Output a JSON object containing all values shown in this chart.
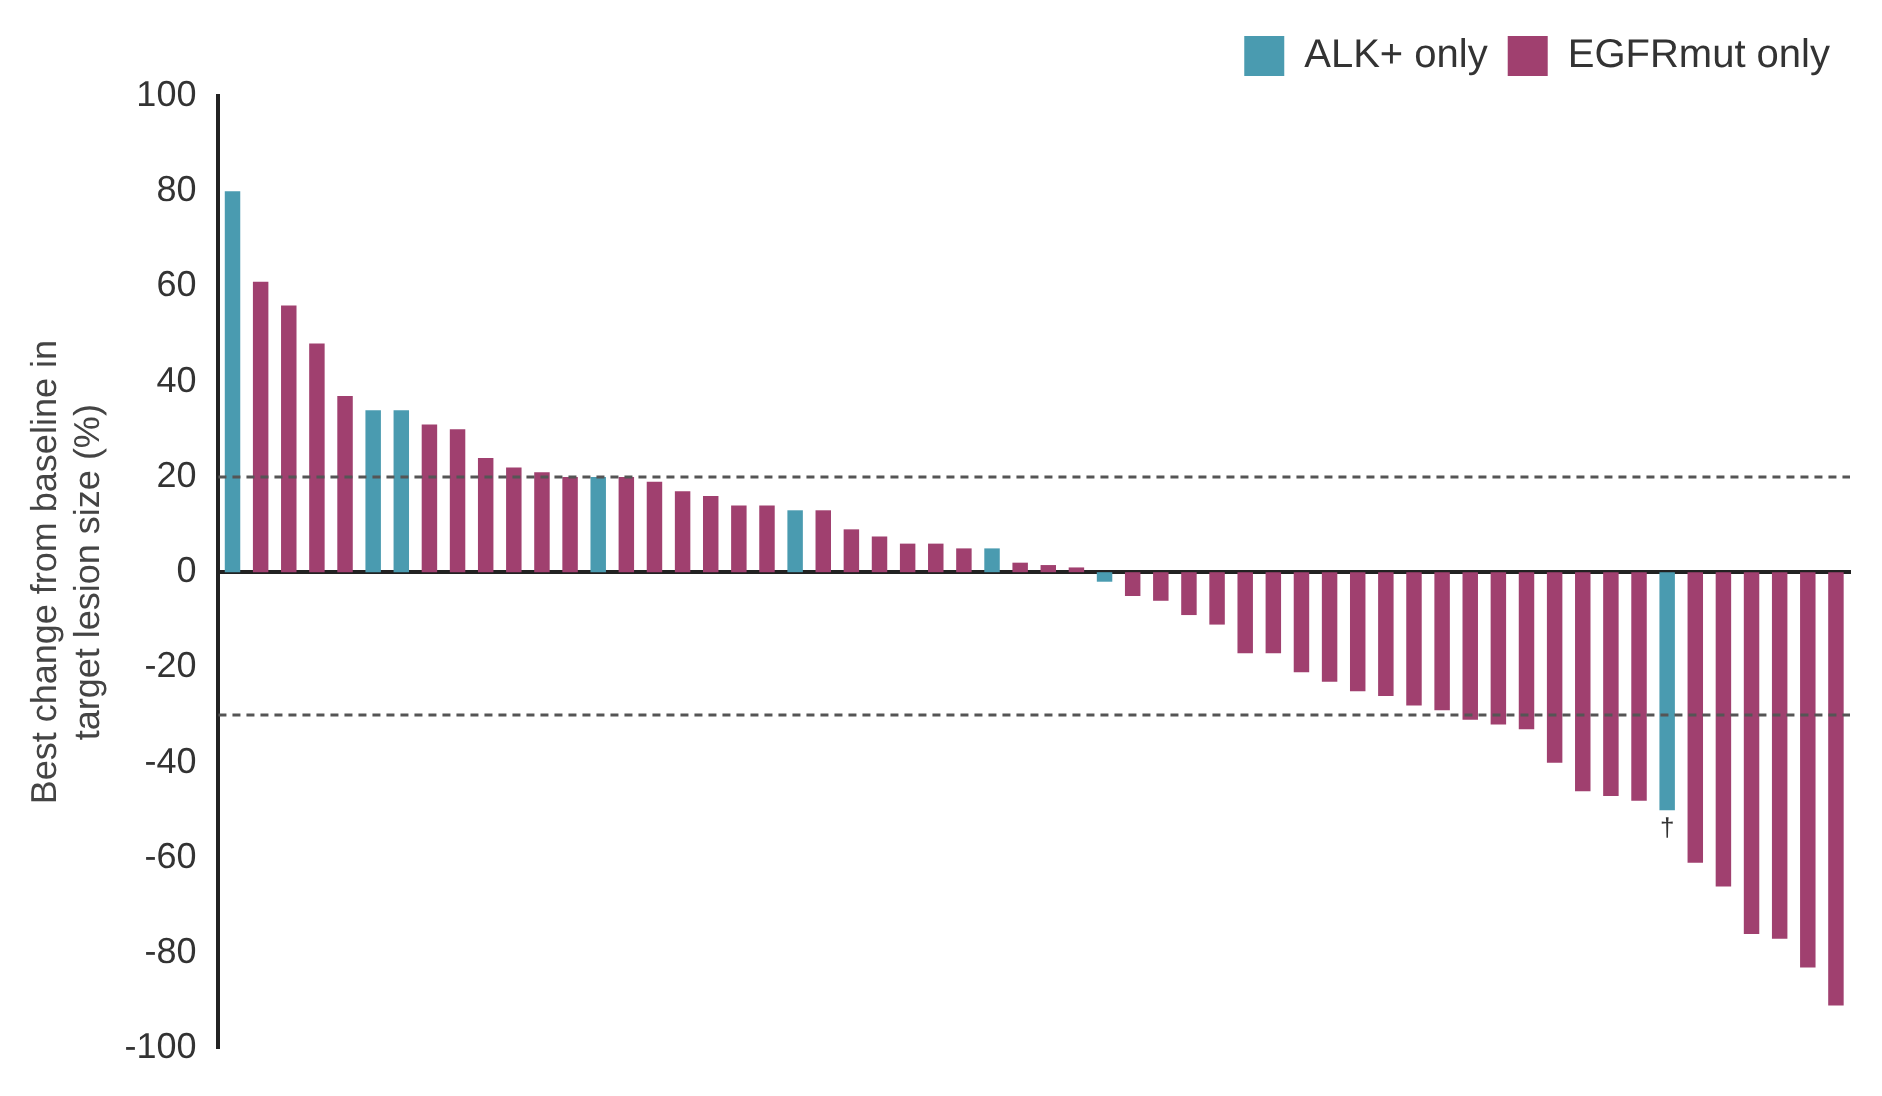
{
  "chart_data": {
    "type": "bar",
    "ylabel": "Best change from baseline in target lesion size (%)",
    "categories": [
      null,
      null,
      null,
      null,
      null,
      null,
      null,
      null,
      null,
      null,
      null,
      null,
      null,
      null,
      null,
      null,
      null,
      null,
      null,
      null,
      null,
      null,
      null,
      null,
      null,
      null,
      null,
      null,
      null,
      null,
      null,
      null,
      null,
      null,
      null,
      null,
      null,
      null,
      null,
      null,
      null,
      null,
      null,
      null,
      null,
      null,
      null,
      null,
      null,
      null,
      null,
      null,
      null,
      null,
      null,
      null,
      null,
      null
    ],
    "series": [
      {
        "name": "ALK+ only",
        "color": "#4a9bb0",
        "values": [
          80,
          null,
          null,
          null,
          null,
          34,
          34,
          null,
          null,
          null,
          null,
          null,
          null,
          20,
          null,
          null,
          null,
          null,
          null,
          null,
          13,
          null,
          null,
          null,
          null,
          null,
          null,
          5,
          null,
          null,
          null,
          -2,
          null,
          null,
          null,
          null,
          null,
          null,
          null,
          null,
          null,
          null,
          null,
          null,
          null,
          null,
          null,
          null,
          null,
          null,
          null,
          -50,
          null,
          null,
          null,
          null,
          null,
          null
        ]
      },
      {
        "name": "EGFRmut only",
        "color": "#a0406f",
        "values": [
          null,
          61,
          56,
          48,
          37,
          null,
          null,
          31,
          30,
          24,
          22,
          21,
          20,
          null,
          20,
          19,
          17,
          16,
          14,
          14,
          null,
          13,
          9,
          7.5,
          6,
          6,
          5,
          null,
          2,
          1.5,
          1,
          null,
          -5,
          -6,
          -9,
          -11,
          -17,
          -17,
          -21,
          -23,
          -25,
          -26,
          -28,
          -29,
          -31,
          -32,
          -33,
          -40,
          -46,
          -47,
          -48,
          null,
          -61,
          -66,
          -76,
          -77,
          -83,
          -91
        ]
      }
    ],
    "ylim": [
      -100,
      100
    ],
    "yticks": [
      -100,
      -80,
      -60,
      -40,
      -20,
      0,
      20,
      40,
      60,
      80,
      100
    ],
    "ref_lines": [
      {
        "axis": "y",
        "value": 20,
        "line_style": "dashed"
      },
      {
        "axis": "y",
        "value": -30,
        "line_style": "dashed"
      }
    ],
    "annotations": [
      "†"
    ],
    "legend": "top right",
    "grid": false
  }
}
